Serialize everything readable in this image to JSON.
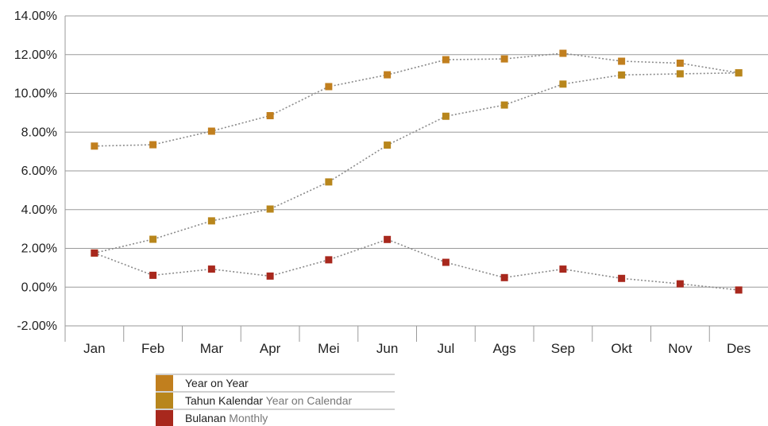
{
  "chart_data": {
    "type": "line",
    "categories": [
      "Jan",
      "Feb",
      "Mar",
      "Apr",
      "Mei",
      "Jun",
      "Jul",
      "Ags",
      "Sep",
      "Okt",
      "Nov",
      "Des"
    ],
    "ylim": [
      -2,
      14
    ],
    "y_ticks": [
      "-2.00%",
      "0.00%",
      "2.00%",
      "4.00%",
      "6.00%",
      "8.00%",
      "10.00%",
      "12.00%",
      "14.00%"
    ],
    "y_tick_values": [
      -2,
      0,
      2,
      4,
      6,
      8,
      10,
      12,
      14
    ],
    "grid": true,
    "legend_placement": "bottom-left",
    "series": [
      {
        "name": "Year on Year",
        "name_sub": "",
        "color": "#c17f1e",
        "values": [
          7.28,
          7.35,
          8.05,
          8.85,
          10.35,
          10.96,
          11.74,
          11.78,
          12.07,
          11.66,
          11.56,
          11.06
        ]
      },
      {
        "name": "Tahun Kalendar",
        "name_sub": "Year on Calendar",
        "color": "#b8861c",
        "values": [
          1.76,
          2.47,
          3.42,
          4.03,
          5.43,
          7.33,
          8.82,
          9.4,
          10.48,
          10.95,
          11.01,
          11.06
        ]
      },
      {
        "name": "Bulanan",
        "name_sub": "Monthly",
        "color": "#a8281d",
        "values": [
          1.76,
          0.61,
          0.93,
          0.57,
          1.41,
          2.46,
          1.28,
          0.49,
          0.93,
          0.45,
          0.17,
          -0.15
        ]
      }
    ]
  }
}
